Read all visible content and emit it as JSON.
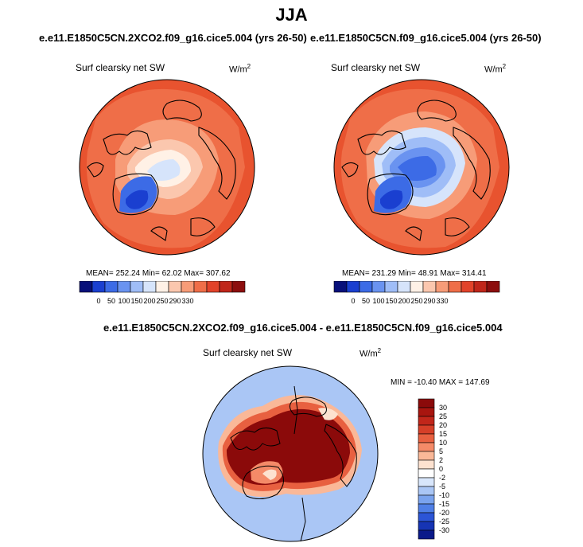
{
  "page": {
    "season": "JJA"
  },
  "panels": [
    {
      "id": "case",
      "title": "e.e11.E1850C5CN.2XCO2.f09_g16.cice5.004 (yrs 26-50)",
      "variable": "Surf clearsky net SW",
      "units": "W/m",
      "units_exp": "2",
      "stats": "MEAN= 252.24  Min=  62.02  Max= 307.62"
    },
    {
      "id": "control",
      "title": "e.e11.E1850C5CN.f09_g16.cice5.004 (yrs 26-50)",
      "variable": "Surf clearsky net SW",
      "units": "W/m",
      "units_exp": "2",
      "stats": "MEAN= 231.29  Min=  48.91  Max= 314.41"
    }
  ],
  "diff": {
    "title": "e.e11.E1850C5CN.2XCO2.f09_g16.cice5.004 - e.e11.E1850C5CN.f09_g16.cice5.004",
    "variable": "Surf clearsky net SW",
    "units": "W/m",
    "units_exp": "2",
    "stats": "MIN = -10.40  MAX = 147.69"
  },
  "chart_data": [
    {
      "type": "heatmap",
      "projection": "north-polar-stereographic",
      "title": "e.e11.E1850C5CN.2XCO2.f09_g16.cice5.004 (yrs 26-50)",
      "field": "Surf clearsky net SW",
      "units": "W/m2",
      "mean": 252.24,
      "min": 62.02,
      "max": 307.62,
      "colorbar": {
        "orientation": "horizontal",
        "levels": [
          "0",
          "50",
          "100",
          "150",
          "200",
          "250",
          "290",
          "330"
        ],
        "colors": [
          "#08107a",
          "#1a3fd0",
          "#3c6be6",
          "#6a93f0",
          "#9fbdf7",
          "#d6e4fb",
          "#fff1e6",
          "#fbc7ae",
          "#f79c78",
          "#ef6e48",
          "#e2432a",
          "#c0261a",
          "#8c0e0e"
        ]
      }
    },
    {
      "type": "heatmap",
      "projection": "north-polar-stereographic",
      "title": "e.e11.E1850C5CN.f09_g16.cice5.004 (yrs 26-50)",
      "field": "Surf clearsky net SW",
      "units": "W/m2",
      "mean": 231.29,
      "min": 48.91,
      "max": 314.41,
      "colorbar": {
        "orientation": "horizontal",
        "levels": [
          "0",
          "50",
          "100",
          "150",
          "200",
          "250",
          "290",
          "330"
        ],
        "colors": [
          "#08107a",
          "#1a3fd0",
          "#3c6be6",
          "#6a93f0",
          "#9fbdf7",
          "#d6e4fb",
          "#fff1e6",
          "#fbc7ae",
          "#f79c78",
          "#ef6e48",
          "#e2432a",
          "#c0261a",
          "#8c0e0e"
        ]
      }
    },
    {
      "type": "heatmap",
      "projection": "north-polar-stereographic",
      "title": "e.e11.E1850C5CN.2XCO2.f09_g16.cice5.004 - e.e11.E1850C5CN.f09_g16.cice5.004",
      "field": "Surf clearsky net SW",
      "units": "W/m2",
      "min": -10.4,
      "max": 147.69,
      "colorbar": {
        "orientation": "vertical",
        "levels": [
          "30",
          "25",
          "20",
          "15",
          "10",
          "5",
          "2",
          "0",
          "-2",
          "-5",
          "-10",
          "-15",
          "-20",
          "-25",
          "-30"
        ],
        "colors": [
          "#8b0a0a",
          "#a8150f",
          "#c1261a",
          "#d63f28",
          "#e86040",
          "#f48a68",
          "#fab898",
          "#fde2d0",
          "#ffffff",
          "#d8e6fb",
          "#aac6f5",
          "#7aa3ee",
          "#4f7fe6",
          "#2c55d6",
          "#1634b4",
          "#0a1a8a"
        ]
      }
    }
  ]
}
